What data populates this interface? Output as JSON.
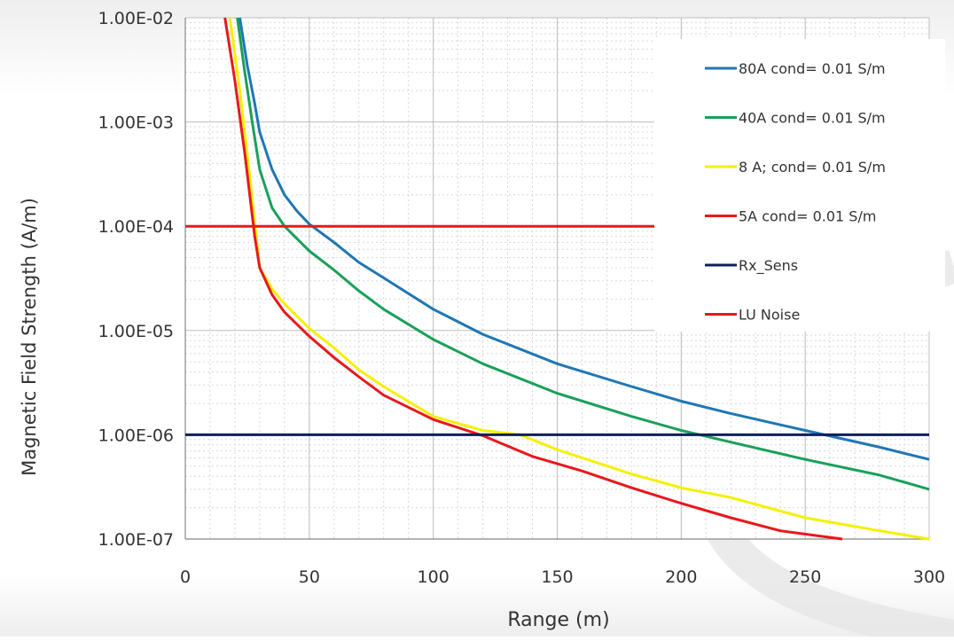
{
  "chart_data": {
    "type": "line",
    "title": "",
    "xlabel": "Range (m)",
    "ylabel": "Magnetic Field Strength (A/m)",
    "x_ticks": [
      0,
      50,
      100,
      150,
      200,
      250,
      300
    ],
    "x_tick_labels": [
      "0",
      "50",
      "100",
      "150",
      "200",
      "250",
      "300"
    ],
    "y_ticks": [
      0.01,
      0.001,
      0.0001,
      1e-05,
      1e-06,
      1e-07
    ],
    "y_tick_labels": [
      "1.00E-02",
      "1.00E-03",
      "1.00E-04",
      "1.00E-05",
      "1.00E-06",
      "1.00E-07"
    ],
    "xlim": [
      0,
      300
    ],
    "ylim": [
      1e-07,
      0.01
    ],
    "y_scale": "log",
    "grid": true,
    "legend_position": "top-right",
    "series": [
      {
        "name": "80A cond= 0.01 S/m",
        "color": "#1f77b4",
        "x": [
          22,
          25,
          28,
          30,
          35,
          40,
          45,
          50,
          60,
          70,
          80,
          100,
          120,
          150,
          180,
          200,
          220,
          250,
          280,
          300
        ],
        "y": [
          0.01,
          0.0035,
          0.0015,
          0.0008,
          0.00035,
          0.0002,
          0.00014,
          0.000105,
          7e-05,
          4.5e-05,
          3.2e-05,
          1.6e-05,
          9.2e-06,
          4.8e-06,
          2.9e-06,
          2.1e-06,
          1.6e-06,
          1.1e-06,
          7.6e-07,
          5.8e-07
        ]
      },
      {
        "name": "40A cond= 0.01 S/m",
        "color": "#1aa05a",
        "x": [
          21,
          24,
          27,
          30,
          35,
          40,
          50,
          60,
          70,
          80,
          100,
          120,
          150,
          180,
          200,
          220,
          250,
          280,
          300
        ],
        "y": [
          0.01,
          0.003,
          0.001,
          0.00035,
          0.00015,
          0.0001,
          5.8e-05,
          3.8e-05,
          2.4e-05,
          1.6e-05,
          8.2e-06,
          4.8e-06,
          2.5e-06,
          1.5e-06,
          1.1e-06,
          8.5e-07,
          5.8e-07,
          4.1e-07,
          3e-07
        ]
      },
      {
        "name": "8 A; cond= 0.01 S/m",
        "color": "#f5f000",
        "x": [
          18,
          22,
          26,
          30,
          35,
          40,
          50,
          60,
          70,
          80,
          100,
          120,
          135,
          150,
          180,
          200,
          220,
          250,
          280,
          300
        ],
        "y": [
          0.01,
          0.002,
          0.0003,
          4e-05,
          2.5e-05,
          1.8e-05,
          1.05e-05,
          6.8e-06,
          4.2e-06,
          2.9e-06,
          1.5e-06,
          1.1e-06,
          1e-06,
          7.2e-07,
          4.2e-07,
          3.1e-07,
          2.5e-07,
          1.6e-07,
          1.2e-07,
          1e-07
        ]
      },
      {
        "name": "5A cond= 0.01 S/m",
        "color": "#e8181c",
        "x": [
          16,
          20,
          24,
          28,
          30,
          35,
          40,
          50,
          60,
          70,
          80,
          100,
          120,
          140,
          160,
          180,
          200,
          220,
          240,
          265
        ],
        "y": [
          0.01,
          0.0025,
          0.0005,
          8e-05,
          4e-05,
          2.2e-05,
          1.5e-05,
          8.8e-06,
          5.5e-06,
          3.6e-06,
          2.4e-06,
          1.4e-06,
          9.8e-07,
          6.2e-07,
          4.5e-07,
          3.1e-07,
          2.2e-07,
          1.6e-07,
          1.2e-07,
          1e-07
        ]
      },
      {
        "name": "Rx_Sens",
        "color": "#0d1f5c",
        "x": [
          0,
          300
        ],
        "y": [
          1e-06,
          1e-06
        ]
      },
      {
        "name": "LU Noise",
        "color": "#e8181c",
        "x": [
          0,
          300
        ],
        "y": [
          0.0001,
          0.0001
        ]
      }
    ]
  }
}
